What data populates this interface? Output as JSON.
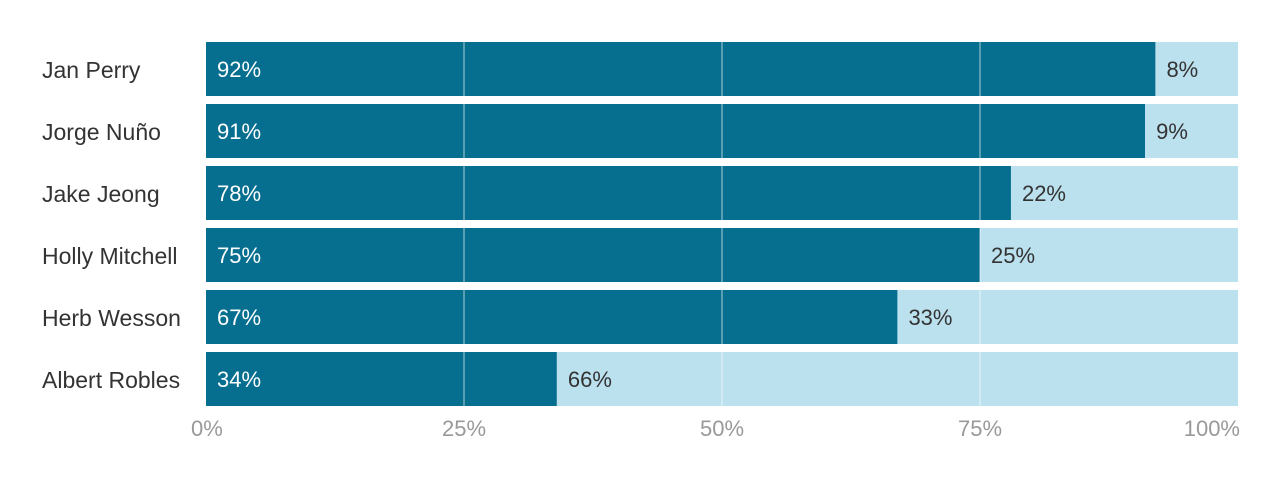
{
  "chart_data": {
    "type": "bar",
    "orientation": "horizontal",
    "stacked": true,
    "categories": [
      "Jan Perry",
      "Jorge Nuño",
      "Jake Jeong",
      "Holly Mitchell",
      "Herb Wesson",
      "Albert Robles"
    ],
    "series": [
      {
        "color": "#066e8f",
        "label_color": "#ffffff",
        "values": [
          92,
          91,
          78,
          75,
          67,
          34
        ],
        "labels": [
          "92%",
          "91%",
          "78%",
          "75%",
          "67%",
          "34%"
        ]
      },
      {
        "color": "#bbe0ee",
        "label_color": "#333333",
        "values": [
          8,
          9,
          22,
          25,
          33,
          66
        ],
        "labels": [
          "8%",
          "9%",
          "22%",
          "25%",
          "33%",
          "66%"
        ]
      }
    ],
    "xlim": [
      0,
      100
    ],
    "x_ticks": [
      0,
      25,
      50,
      75,
      100
    ],
    "x_tick_labels": [
      "0%",
      "25%",
      "50%",
      "75%",
      "100%"
    ],
    "grid": true,
    "legend": "none",
    "title": "",
    "xlabel": "",
    "ylabel": ""
  }
}
